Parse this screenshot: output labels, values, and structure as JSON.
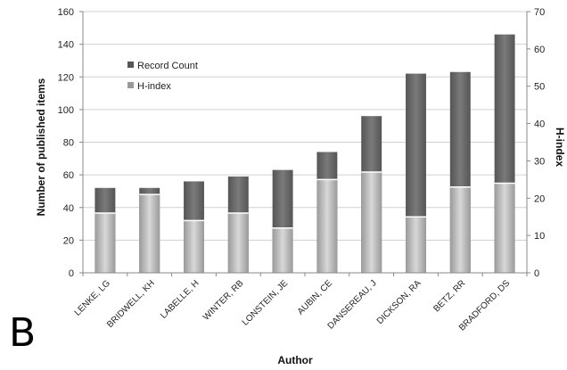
{
  "panel_label": "B",
  "colors": {
    "record_dark": "#555555",
    "record_light": "#7a7a7a",
    "hindex_dark": "#9a9a9a",
    "hindex_light": "#d8d8d8",
    "axis": "#888888",
    "grid": "#d0d0d0"
  },
  "chart_data": {
    "type": "bar",
    "stacking": "overlaid",
    "xlabel": "Author",
    "ylabel": "Number of published items",
    "y2label": "H-index",
    "ylim": [
      0,
      160
    ],
    "y2lim": [
      0,
      70
    ],
    "yticks": [
      0,
      20,
      40,
      60,
      80,
      100,
      120,
      140,
      160
    ],
    "y2ticks": [
      0,
      10,
      20,
      30,
      40,
      50,
      60,
      70
    ],
    "grid": true,
    "legend_position": "upper-left",
    "categories": [
      "LENKE, LG",
      "BRIDWELL, KH",
      "LABELLE, H",
      "WINTER, RB",
      "LONSTEIN, JE",
      "AUBIN, CE",
      "DANSEREAU, J",
      "DICKSON, RA",
      "BETZ, RR",
      "BRADFORD, DS"
    ],
    "series": [
      {
        "name": "Record Count",
        "axis": "left",
        "values": [
          52,
          52,
          56,
          59,
          63,
          74,
          96,
          122,
          123,
          146
        ]
      },
      {
        "name": "H-index",
        "axis": "right",
        "values": [
          16,
          21,
          14,
          16,
          12,
          25,
          27,
          15,
          23,
          24
        ]
      }
    ]
  }
}
